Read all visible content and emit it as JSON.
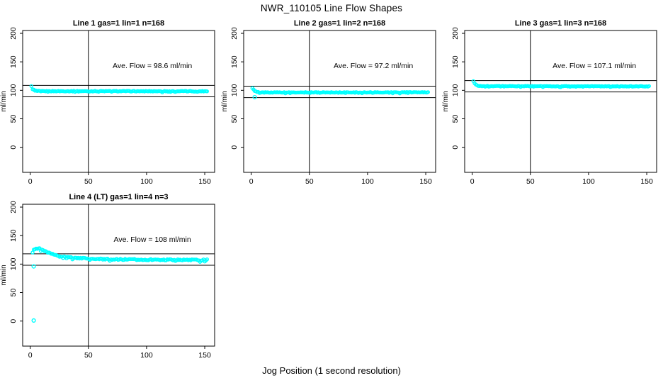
{
  "page": {
    "title": "NWR_110105  Line Flow Shapes",
    "xlabel": "Jog Position (1 second resolution)"
  },
  "chart_data": {
    "type": "scatter",
    "title": "NWR_110105  Line Flow Shapes",
    "xlabel": "Jog Position (1 second resolution)",
    "ylabel": "ml/min",
    "xticks": [
      0,
      50,
      100,
      150
    ],
    "yticks": [
      0,
      50,
      100,
      150,
      200
    ],
    "xlim": [
      -6.5,
      158.5
    ],
    "ylim": [
      -44,
      205
    ],
    "grid": false,
    "marker": "open-circle",
    "marker_color": "#00FFFF",
    "line_color": "#000000",
    "vline_x": 50,
    "ref_line_offset": 10,
    "subplots": [
      {
        "title": "Line 1 gas=1 lin=1 n=168",
        "ave_flow": 98.6,
        "annotation": "Ave. Flow =  98.6  ml/min",
        "n_points": 150,
        "x_start": 1,
        "x_end": 152,
        "noise": 0.9,
        "trend": [
          [
            1,
            107
          ],
          [
            2,
            103.5
          ],
          [
            3,
            101
          ],
          [
            4,
            99.8
          ],
          [
            6,
            98.8
          ],
          [
            10,
            98.5
          ],
          [
            152,
            98.4
          ]
        ],
        "outliers": []
      },
      {
        "title": "Line 2 gas=1 lin=2 n=168",
        "ave_flow": 97.2,
        "annotation": "Ave. Flow =  97.2  ml/min",
        "n_points": 150,
        "x_start": 1,
        "x_end": 152,
        "noise": 0.9,
        "trend": [
          [
            1,
            105
          ],
          [
            2,
            101.5
          ],
          [
            3,
            99
          ],
          [
            5,
            97
          ],
          [
            8,
            96.3
          ],
          [
            152,
            96.5
          ]
        ],
        "outliers": [
          [
            3,
            88
          ]
        ]
      },
      {
        "title": "Line 3 gas=1 lin=3 n=168",
        "ave_flow": 107.1,
        "annotation": "Ave. Flow =  107.1  ml/min",
        "n_points": 150,
        "x_start": 1,
        "x_end": 152,
        "noise": 0.8,
        "trend": [
          [
            1,
            116
          ],
          [
            2,
            112.5
          ],
          [
            3,
            110
          ],
          [
            5,
            108.2
          ],
          [
            8,
            107.4
          ],
          [
            152,
            107
          ]
        ],
        "outliers": []
      },
      {
        "title": "Line 4 (LT) gas=1 lin=4 n=3",
        "ave_flow": 108,
        "annotation": "Ave. Flow =  108  ml/min",
        "n_points": 150,
        "x_start": 2,
        "x_end": 152,
        "noise": 1.7,
        "trend": [
          [
            2,
            124
          ],
          [
            3,
            126
          ],
          [
            5,
            127.5
          ],
          [
            8,
            127
          ],
          [
            12,
            123
          ],
          [
            18,
            118
          ],
          [
            25,
            114.5
          ],
          [
            35,
            111.5
          ],
          [
            50,
            109.5
          ],
          [
            70,
            108.3
          ],
          [
            100,
            107.8
          ],
          [
            152,
            107.2
          ]
        ],
        "outliers": [
          [
            3,
            96
          ],
          [
            3,
            1
          ]
        ]
      }
    ]
  }
}
